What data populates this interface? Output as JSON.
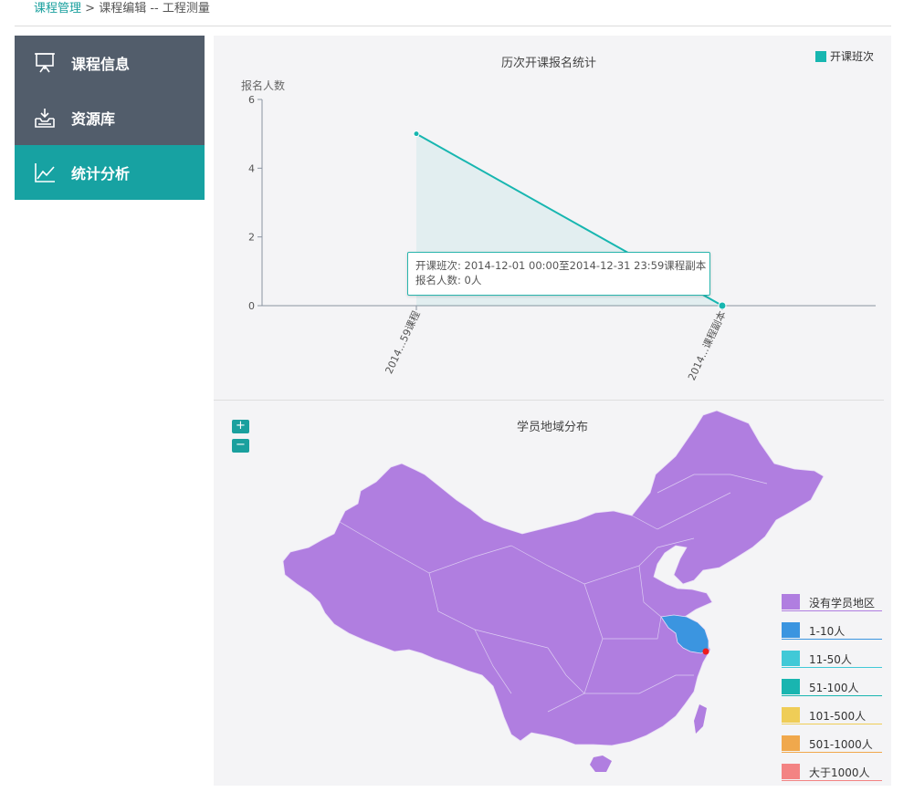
{
  "breadcrumb": {
    "root": "课程管理",
    "sep": " > ",
    "current": "课程编辑 -- 工程测量"
  },
  "sidebar": {
    "items": [
      {
        "label": "课程信息",
        "icon": "presentation-board-icon",
        "active": false
      },
      {
        "label": "资源库",
        "icon": "inbox-download-icon",
        "active": false
      },
      {
        "label": "统计分析",
        "icon": "line-chart-icon",
        "active": true
      }
    ]
  },
  "colors": {
    "accent": "#17a2a2",
    "sidebar_bg": "#525d6b",
    "line": "#17b6b0",
    "map_fill": "#b07ee0"
  },
  "chart_data": [
    {
      "type": "line",
      "title": "历次开课报名统计",
      "ylabel": "报名人数",
      "ylim": [
        0,
        6
      ],
      "yticks": [
        "0",
        "2",
        "4",
        "6"
      ],
      "categories": [
        "2014...59课程",
        "2014...课程副本"
      ],
      "series": [
        {
          "name": "开课班次",
          "values": [
            5,
            0
          ]
        }
      ],
      "legend": "top-right",
      "tooltip": {
        "line1": "开课班次: 2014-12-01 00:00至2014-12-31 23:59课程副本",
        "line2": "报名人数: 0人"
      }
    },
    {
      "type": "map",
      "title": "学员地域分布",
      "legend": [
        {
          "label": "没有学员地区",
          "color": "#b07ee0"
        },
        {
          "label": "1-10人",
          "color": "#3b95e0"
        },
        {
          "label": "11-50人",
          "color": "#41c9d7"
        },
        {
          "label": "51-100人",
          "color": "#19b5b0"
        },
        {
          "label": "101-500人",
          "color": "#efcd57"
        },
        {
          "label": "501-1000人",
          "color": "#f0a84c"
        },
        {
          "label": "大于1000人",
          "color": "#f38383"
        }
      ],
      "highlighted_region_color": "#3b95e0"
    }
  ],
  "map_controls": {
    "zoom_in": "+",
    "zoom_out": "−"
  }
}
